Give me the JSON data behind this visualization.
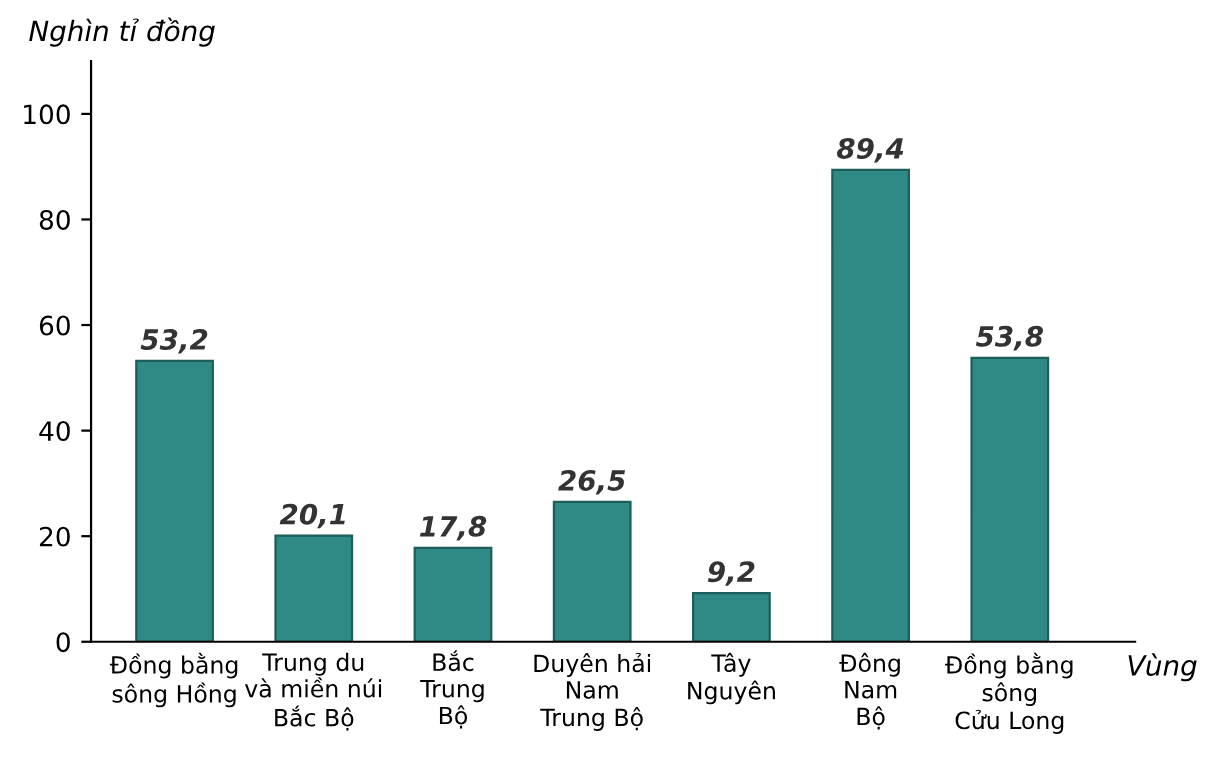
{
  "chart_data": {
    "type": "bar",
    "xlabel": "Vùng",
    "ylabel": "Nghìn tỉ đồng",
    "categories": [
      "Đồng bằng\nsông Hồng",
      "Trung du\nvà miền núi\nBắc Bộ",
      "Bắc\nTrung\nBộ",
      "Duyên hải\nNam\nTrung Bộ",
      "Tây\nNguyên",
      "Đông\nNam\nBộ",
      "Đồng bằng\nsông\nCửu Long"
    ],
    "values": [
      53.2,
      20.1,
      17.8,
      26.5,
      9.2,
      89.4,
      53.8
    ],
    "value_labels": [
      "53,2",
      "20,1",
      "17,8",
      "26,5",
      "9,2",
      "89,4",
      "53,8"
    ],
    "color": "#2f8a86",
    "ylim": [
      0,
      110
    ],
    "yticks": [
      0,
      20,
      40,
      60,
      80,
      100
    ],
    "grid": false,
    "legend": false
  }
}
